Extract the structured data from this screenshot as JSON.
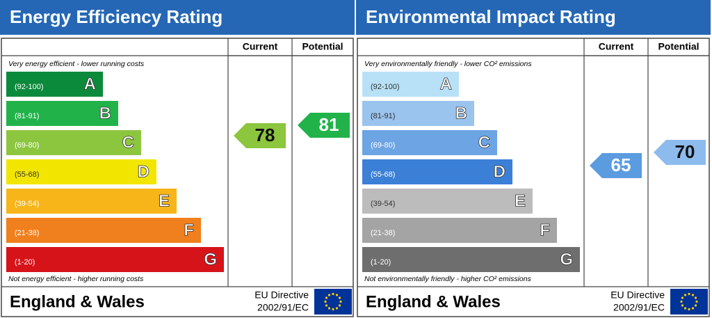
{
  "panels": [
    {
      "title": "Energy Efficiency Rating",
      "columns": [
        "Current",
        "Potential"
      ],
      "top_note": "Very energy efficient - lower running costs",
      "bottom_note": "Not energy efficient - higher running costs",
      "bands": [
        {
          "range": "(92-100)",
          "letter": "A"
        },
        {
          "range": "(81-91)",
          "letter": "B"
        },
        {
          "range": "(69-80)",
          "letter": "C"
        },
        {
          "range": "(55-68)",
          "letter": "D"
        },
        {
          "range": "(39-54)",
          "letter": "E"
        },
        {
          "range": "(21-38)",
          "letter": "F"
        },
        {
          "range": "(1-20)",
          "letter": "G"
        }
      ],
      "current": 78,
      "potential": 81,
      "footer": {
        "region": "England & Wales",
        "directive": "EU Directive",
        "code": "2002/91/EC"
      }
    },
    {
      "title": "Environmental Impact Rating",
      "columns": [
        "Current",
        "Potential"
      ],
      "top_note": "Very environmentally friendly - lower CO² emissions",
      "bottom_note": "Not environmentally friendly - higher CO² emissions",
      "bands": [
        {
          "range": "(92-100)",
          "letter": "A"
        },
        {
          "range": "(81-91)",
          "letter": "B"
        },
        {
          "range": "(69-80)",
          "letter": "C"
        },
        {
          "range": "(55-68)",
          "letter": "D"
        },
        {
          "range": "(39-54)",
          "letter": "E"
        },
        {
          "range": "(21-38)",
          "letter": "F"
        },
        {
          "range": "(1-20)",
          "letter": "G"
        }
      ],
      "current": 65,
      "potential": 70,
      "footer": {
        "region": "England & Wales",
        "directive": "EU Directive",
        "code": "2002/91/EC"
      }
    }
  ]
}
